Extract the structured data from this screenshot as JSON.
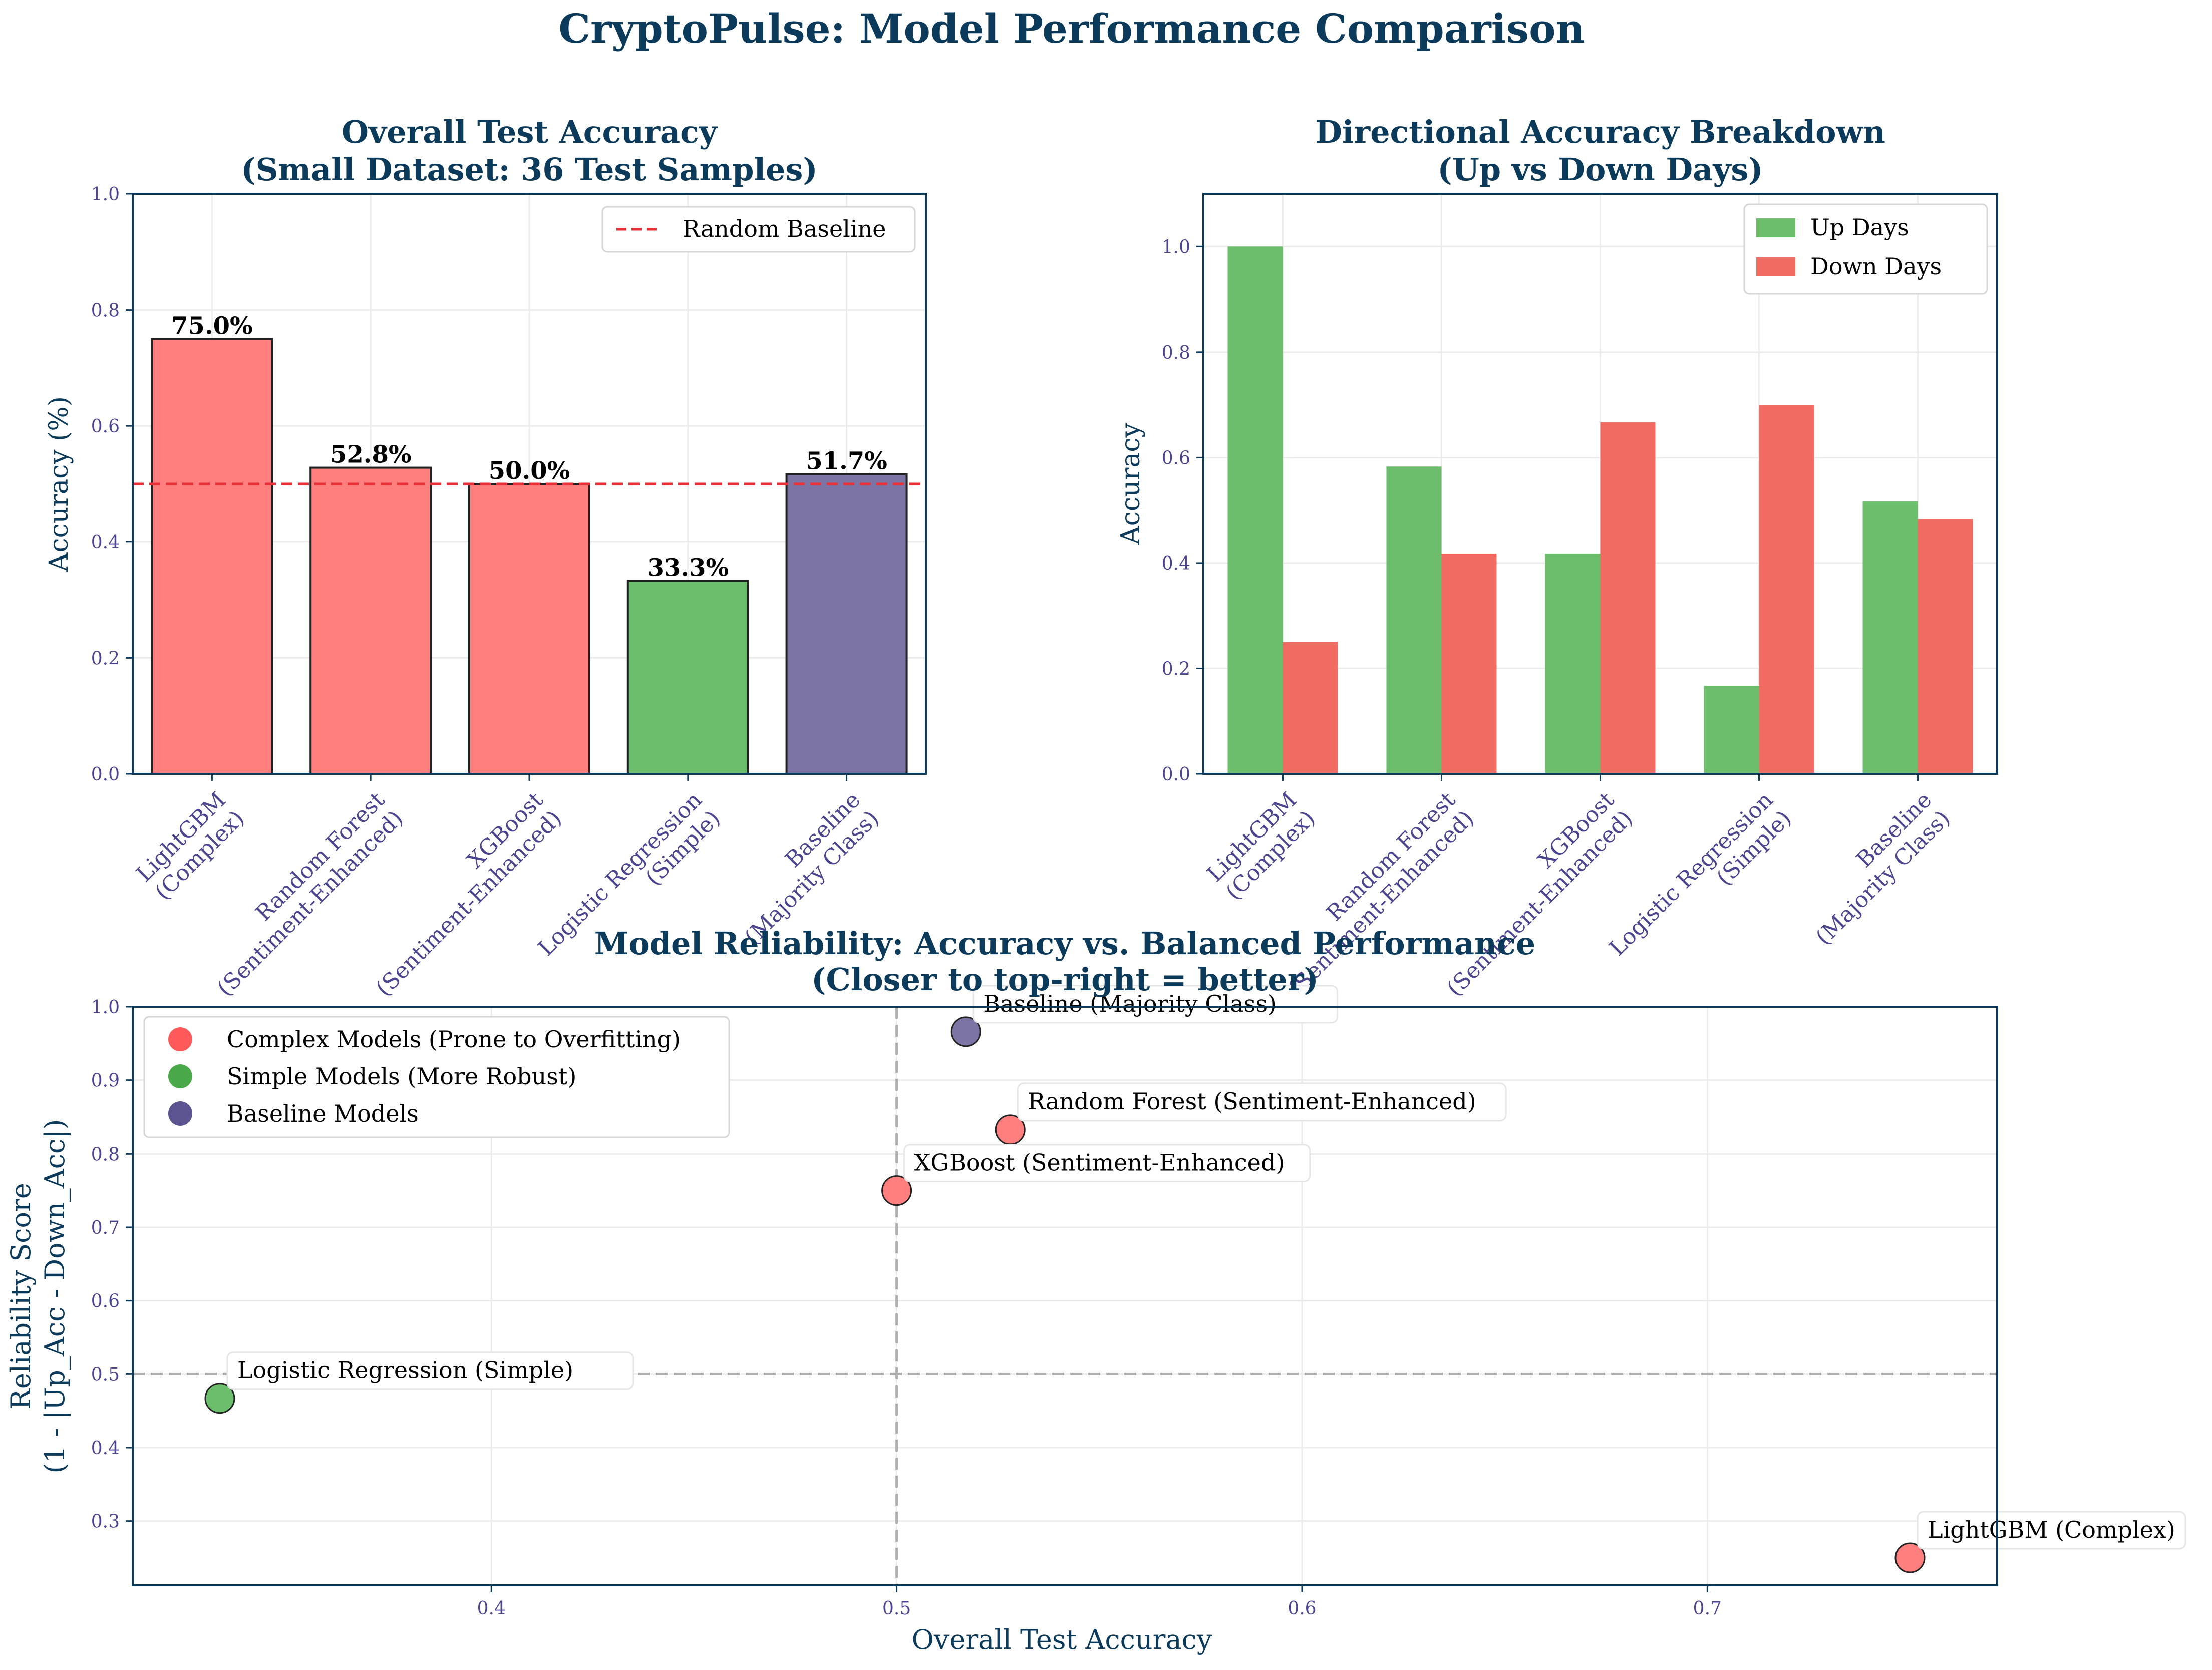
{
  "figure": {
    "title": "CryptoPulse: Model Performance Comparison",
    "colors": {
      "title": "#0b3a5a",
      "axis": "#0b3a5a",
      "tick": "#4b4590",
      "complex": "#ff7f7f",
      "simple": "#6cbe6c",
      "baseline": "#7b74a4",
      "up": "#6cbe6c",
      "down": "#f26b62",
      "random_line": "#e8333a",
      "ref_line": "#b0b0b0",
      "grid": "#ececec"
    }
  },
  "chart_data": [
    {
      "id": "overall",
      "type": "bar",
      "title_lines": [
        "Overall Test Accuracy",
        "(Small Dataset: 36 Test Samples)"
      ],
      "ylabel": "Accuracy (%)",
      "ylim": [
        0,
        1.0
      ],
      "yticks": [
        "0.0",
        "0.2",
        "0.4",
        "0.6",
        "0.8",
        "1.0"
      ],
      "ytick_values": [
        0,
        0.2,
        0.4,
        0.6,
        0.8,
        1.0
      ],
      "categories": [
        [
          "LightGBM",
          "(Complex)"
        ],
        [
          "Random Forest",
          "(Sentiment-Enhanced)"
        ],
        [
          "XGBoost",
          "(Sentiment-Enhanced)"
        ],
        [
          "Logistic Regression",
          "(Simple)"
        ],
        [
          "Baseline",
          "(Majority Class)"
        ]
      ],
      "values": [
        0.75,
        0.528,
        0.5,
        0.333,
        0.517
      ],
      "value_labels": [
        "75.0%",
        "52.8%",
        "50.0%",
        "33.3%",
        "51.7%"
      ],
      "bar_groups": [
        "complex",
        "complex",
        "complex",
        "simple",
        "baseline"
      ],
      "reference_line": {
        "y": 0.5,
        "label": "Random Baseline"
      },
      "legend": "top-right",
      "grid": true
    },
    {
      "id": "directional",
      "type": "bar",
      "title_lines": [
        "Directional Accuracy Breakdown",
        "(Up vs Down Days)"
      ],
      "ylabel": "Accuracy",
      "ylim": [
        0,
        1.1
      ],
      "yticks": [
        "0.0",
        "0.2",
        "0.4",
        "0.6",
        "0.8",
        "1.0"
      ],
      "ytick_values": [
        0,
        0.2,
        0.4,
        0.6,
        0.8,
        1.0
      ],
      "categories": [
        [
          "LightGBM",
          "(Complex)"
        ],
        [
          "Random Forest",
          "(Sentiment-Enhanced)"
        ],
        [
          "XGBoost",
          "(Sentiment-Enhanced)"
        ],
        [
          "Logistic Regression",
          "(Simple)"
        ],
        [
          "Baseline",
          "(Majority Class)"
        ]
      ],
      "series": [
        {
          "name": "Up Days",
          "key": "up",
          "values": [
            1.0,
            0.583,
            0.417,
            0.167,
            0.517
          ]
        },
        {
          "name": "Down Days",
          "key": "down",
          "values": [
            0.25,
            0.417,
            0.667,
            0.7,
            0.483
          ]
        }
      ],
      "legend": "top-right",
      "grid": true
    },
    {
      "id": "reliability",
      "type": "scatter",
      "title_lines": [
        "Model Reliability: Accuracy vs. Balanced Performance",
        "(Closer to top-right = better)"
      ],
      "xlabel": "Overall Test Accuracy",
      "ylabel_lines": [
        "Reliability Score",
        "(1 - |Up_Acc - Down_Acc|)"
      ],
      "xlim": [
        0.3115,
        0.7715
      ],
      "ylim": [
        0.2125,
        1.0
      ],
      "xticks": [
        "0.4",
        "0.5",
        "0.6",
        "0.7"
      ],
      "xtick_values": [
        0.4,
        0.5,
        0.6,
        0.7
      ],
      "yticks": [
        "0.3",
        "0.4",
        "0.5",
        "0.6",
        "0.7",
        "0.8",
        "0.9",
        "1.0"
      ],
      "ytick_values": [
        0.3,
        0.4,
        0.5,
        0.6,
        0.7,
        0.8,
        0.9,
        1.0
      ],
      "ref_x": 0.5,
      "ref_y": 0.5,
      "points": [
        {
          "label": "LightGBM (Complex)",
          "x": 0.75,
          "y": 0.25,
          "group": "complex"
        },
        {
          "label": "Random Forest (Sentiment-Enhanced)",
          "x": 0.528,
          "y": 0.833,
          "group": "complex"
        },
        {
          "label": "XGBoost (Sentiment-Enhanced)",
          "x": 0.5,
          "y": 0.75,
          "group": "complex"
        },
        {
          "label": "Logistic Regression (Simple)",
          "x": 0.333,
          "y": 0.467,
          "group": "simple"
        },
        {
          "label": "Baseline (Majority Class)",
          "x": 0.517,
          "y": 0.966,
          "group": "baseline"
        }
      ],
      "legend": {
        "placement": "top-left",
        "entries": [
          {
            "label": "Complex Models (Prone to Overfitting)",
            "group": "complex",
            "color": "#ff5a5a"
          },
          {
            "label": "Simple Models (More Robust)",
            "group": "simple",
            "color": "#4aaa4a"
          },
          {
            "label": "Baseline Models",
            "group": "baseline",
            "color": "#5a5490"
          }
        ]
      },
      "grid": true
    }
  ]
}
